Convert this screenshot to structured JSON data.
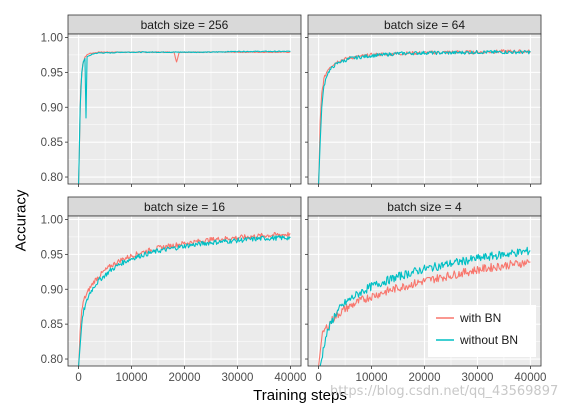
{
  "figure": {
    "ylabel": "Accuracy",
    "xlabel": "Training steps",
    "watermark": "https://blog.csdn.net/qq_43569897"
  },
  "colors": {
    "with_bn": "#F8766D",
    "without_bn": "#00BFC4",
    "panel_bg": "#EBEBEB",
    "strip_bg": "#D9D9D9",
    "grid": "#FFFFFF"
  },
  "legend": {
    "position": "inside-bottom-right-of-last-panel",
    "entries": [
      "with BN",
      "without BN"
    ]
  },
  "chart_data": [
    {
      "type": "line",
      "title": "batch size = 256",
      "xlim": [
        -2000,
        42000
      ],
      "ylim": [
        0.79,
        1.005
      ],
      "x_ticks": [
        0,
        10000,
        20000,
        30000,
        40000
      ],
      "y_ticks": [
        0.8,
        0.85,
        0.9,
        0.95,
        1.0
      ],
      "y_tick_labels": [
        "0.80",
        "0.85",
        "0.90",
        "0.95",
        "1.00"
      ],
      "series": [
        {
          "name": "with BN",
          "x": [
            0,
            400,
            800,
            1200,
            1600,
            2000,
            3000,
            4000,
            6000,
            8000,
            10000,
            14000,
            18000,
            18500,
            19000,
            20000,
            25000,
            30000,
            35000,
            40000
          ],
          "y": [
            0.79,
            0.93,
            0.962,
            0.972,
            0.975,
            0.977,
            0.978,
            0.979,
            0.979,
            0.979,
            0.979,
            0.979,
            0.979,
            0.965,
            0.979,
            0.979,
            0.979,
            0.979,
            0.979,
            0.979
          ]
        },
        {
          "name": "without BN",
          "x": [
            0,
            300,
            600,
            900,
            1200,
            1400,
            1600,
            2000,
            3000,
            4000,
            6000,
            8000,
            10000,
            15000,
            20000,
            25000,
            30000,
            35000,
            40000
          ],
          "y": [
            0.79,
            0.9,
            0.95,
            0.965,
            0.97,
            0.885,
            0.972,
            0.974,
            0.977,
            0.978,
            0.978,
            0.979,
            0.979,
            0.979,
            0.979,
            0.979,
            0.98,
            0.98,
            0.98
          ]
        }
      ]
    },
    {
      "type": "line",
      "title": "batch size = 64",
      "xlim": [
        -2000,
        42000
      ],
      "ylim": [
        0.79,
        1.005
      ],
      "x_ticks": [
        0,
        10000,
        20000,
        30000,
        40000
      ],
      "y_ticks": [
        0.8,
        0.85,
        0.9,
        0.95,
        1.0
      ],
      "y_tick_labels": [],
      "series": [
        {
          "name": "with BN",
          "x": [
            0,
            300,
            600,
            1000,
            1500,
            2000,
            3000,
            4000,
            5000,
            6000,
            8000,
            10000,
            12000,
            15000,
            20000,
            25000,
            30000,
            35000,
            40000
          ],
          "y": [
            0.79,
            0.88,
            0.92,
            0.94,
            0.95,
            0.957,
            0.963,
            0.967,
            0.969,
            0.971,
            0.973,
            0.975,
            0.976,
            0.977,
            0.978,
            0.979,
            0.979,
            0.98,
            0.98
          ]
        },
        {
          "name": "without BN",
          "x": [
            0,
            300,
            600,
            1000,
            1500,
            2000,
            3000,
            4000,
            5000,
            6000,
            8000,
            10000,
            12000,
            15000,
            20000,
            25000,
            30000,
            35000,
            40000
          ],
          "y": [
            0.79,
            0.85,
            0.9,
            0.93,
            0.945,
            0.952,
            0.96,
            0.965,
            0.967,
            0.97,
            0.972,
            0.974,
            0.975,
            0.977,
            0.978,
            0.978,
            0.979,
            0.979,
            0.979
          ]
        }
      ]
    },
    {
      "type": "line",
      "title": "batch size = 16",
      "xlim": [
        -2000,
        42000
      ],
      "ylim": [
        0.79,
        1.005
      ],
      "x_ticks": [
        0,
        10000,
        20000,
        30000,
        40000
      ],
      "x_tick_labels": [
        "0",
        "10000",
        "20000",
        "30000",
        "40000"
      ],
      "y_ticks": [
        0.8,
        0.85,
        0.9,
        0.95,
        1.0
      ],
      "y_tick_labels": [
        "0.80",
        "0.85",
        "0.90",
        "0.95",
        "1.00"
      ],
      "series": [
        {
          "name": "with BN",
          "x": [
            0,
            300,
            600,
            1000,
            2000,
            3000,
            4000,
            5000,
            6000,
            8000,
            10000,
            12000,
            15000,
            18000,
            20000,
            25000,
            30000,
            35000,
            40000
          ],
          "y": [
            0.79,
            0.84,
            0.87,
            0.885,
            0.9,
            0.912,
            0.92,
            0.927,
            0.933,
            0.942,
            0.948,
            0.953,
            0.959,
            0.963,
            0.966,
            0.971,
            0.974,
            0.977,
            0.979
          ]
        },
        {
          "name": "without BN",
          "x": [
            0,
            300,
            600,
            1000,
            2000,
            3000,
            4000,
            5000,
            6000,
            8000,
            10000,
            12000,
            15000,
            18000,
            20000,
            25000,
            30000,
            35000,
            40000
          ],
          "y": [
            0.79,
            0.82,
            0.85,
            0.87,
            0.893,
            0.905,
            0.914,
            0.92,
            0.927,
            0.937,
            0.944,
            0.949,
            0.955,
            0.959,
            0.962,
            0.967,
            0.97,
            0.973,
            0.974
          ]
        }
      ]
    },
    {
      "type": "line",
      "title": "batch size = 4",
      "xlim": [
        -2000,
        42000
      ],
      "ylim": [
        0.79,
        1.005
      ],
      "x_ticks": [
        0,
        10000,
        20000,
        30000,
        40000
      ],
      "x_tick_labels": [
        "0",
        "10000",
        "20000",
        "30000",
        "40000"
      ],
      "y_ticks": [
        0.8,
        0.85,
        0.9,
        0.95,
        1.0
      ],
      "y_tick_labels": [],
      "series": [
        {
          "name": "with BN",
          "x": [
            0,
            300,
            600,
            1000,
            1500,
            2000,
            3000,
            4000,
            5000,
            6000,
            8000,
            10000,
            12000,
            15000,
            18000,
            20000,
            25000,
            30000,
            35000,
            40000
          ],
          "y": [
            0.79,
            0.81,
            0.83,
            0.84,
            0.845,
            0.85,
            0.86,
            0.866,
            0.872,
            0.876,
            0.884,
            0.89,
            0.895,
            0.902,
            0.908,
            0.912,
            0.92,
            0.928,
            0.934,
            0.939
          ]
        },
        {
          "name": "without BN",
          "x": [
            0,
            300,
            600,
            1000,
            1500,
            2000,
            3000,
            4000,
            5000,
            6000,
            8000,
            10000,
            12000,
            15000,
            18000,
            20000,
            25000,
            30000,
            35000,
            40000
          ],
          "y": [
            0.79,
            0.79,
            0.8,
            0.82,
            0.835,
            0.845,
            0.862,
            0.872,
            0.88,
            0.886,
            0.896,
            0.904,
            0.91,
            0.918,
            0.925,
            0.929,
            0.937,
            0.944,
            0.95,
            0.955
          ]
        }
      ]
    }
  ]
}
